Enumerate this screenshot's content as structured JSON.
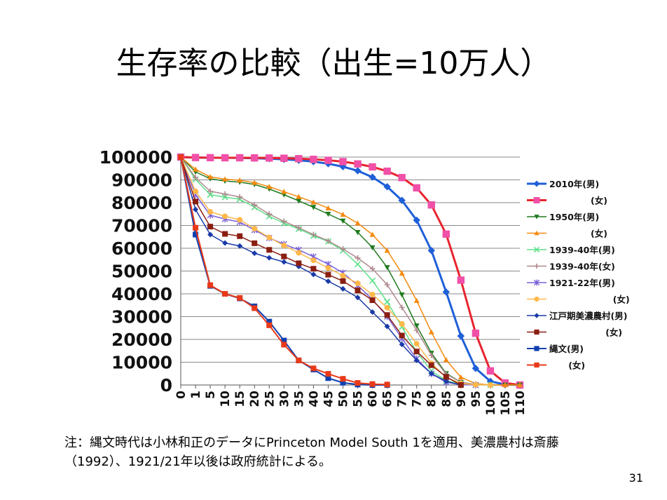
{
  "slide": {
    "title": "生存率の比較（出生=10万人）",
    "note_line1": "注：縄文時代は小林和正のデータにPrinceton Model South 1を適用、美濃農村は斎藤",
    "note_line2": "（1992）、1921/21年以後は政府統計による。",
    "page_number": "31"
  },
  "chart_data": {
    "type": "line",
    "title": "",
    "xlabel": "",
    "ylabel": "",
    "xlim": [
      0,
      110
    ],
    "ylim": [
      0,
      100000
    ],
    "x_ticks": [
      "0",
      "1",
      "5",
      "10",
      "15",
      "20",
      "25",
      "30",
      "35",
      "40",
      "45",
      "50",
      "55",
      "60",
      "65",
      "70",
      "75",
      "80",
      "85",
      "90",
      "95",
      "100",
      "105",
      "110"
    ],
    "y_ticks": [
      "100000",
      "90000",
      "80000",
      "70000",
      "60000",
      "50000",
      "40000",
      "30000",
      "20000",
      "10000",
      "0"
    ],
    "grid": "horizontal",
    "legend_position": "right",
    "series": [
      {
        "name": "2010年(男)",
        "color": "#1f5fd8",
        "marker": "diamond",
        "x": [
          0,
          1,
          5,
          10,
          15,
          20,
          25,
          30,
          35,
          40,
          45,
          50,
          55,
          60,
          65,
          70,
          75,
          80,
          85,
          90,
          95,
          100,
          105,
          110
        ],
        "values": [
          100000,
          99800,
          99700,
          99700,
          99600,
          99500,
          99300,
          99000,
          98600,
          98000,
          97100,
          95800,
          94000,
          91200,
          87000,
          81000,
          72300,
          59000,
          40800,
          21500,
          7300,
          1600,
          200,
          0
        ]
      },
      {
        "name": "(女)",
        "color": "#e8242e",
        "marker": "square",
        "marker_color": "#f050a8",
        "x": [
          0,
          1,
          5,
          10,
          15,
          20,
          25,
          30,
          35,
          40,
          45,
          50,
          55,
          60,
          65,
          70,
          75,
          80,
          85,
          90,
          95,
          100,
          105,
          110
        ],
        "values": [
          100000,
          99800,
          99750,
          99700,
          99700,
          99650,
          99600,
          99500,
          99300,
          99000,
          98600,
          98000,
          97000,
          95700,
          93800,
          91000,
          86500,
          79000,
          66200,
          46000,
          22700,
          6200,
          900,
          0
        ]
      },
      {
        "name": "1950年(男)",
        "color": "#1e7a1e",
        "marker": "triangle-down",
        "x": [
          0,
          1,
          5,
          10,
          15,
          20,
          25,
          30,
          35,
          40,
          45,
          50,
          55,
          60,
          65,
          70,
          75,
          80,
          85,
          90,
          95,
          100,
          105,
          110
        ],
        "values": [
          100000,
          93500,
          90500,
          89500,
          89000,
          88000,
          86000,
          83500,
          80800,
          78000,
          75000,
          72000,
          67000,
          60300,
          51600,
          39600,
          26000,
          14000,
          5100,
          1200,
          200,
          0,
          0,
          0
        ]
      },
      {
        "name": "(女)",
        "color": "#f58a0e",
        "marker": "triangle",
        "x": [
          0,
          1,
          5,
          10,
          15,
          20,
          25,
          30,
          35,
          40,
          45,
          50,
          55,
          60,
          65,
          70,
          75,
          80,
          85,
          90,
          95,
          100,
          105,
          110
        ],
        "values": [
          100000,
          94600,
          91300,
          90300,
          89800,
          88800,
          87000,
          84800,
          82600,
          80200,
          77600,
          74800,
          71000,
          66000,
          59000,
          49000,
          37000,
          23200,
          11000,
          3400,
          600,
          0,
          0,
          0
        ]
      },
      {
        "name": "1939-40年(男)",
        "color": "#5ee08a",
        "marker": "x",
        "x": [
          0,
          1,
          5,
          10,
          15,
          20,
          25,
          30,
          35,
          40,
          45,
          50,
          55,
          60,
          65,
          70,
          75,
          80,
          85,
          90,
          95,
          100
        ],
        "values": [
          100000,
          90200,
          83500,
          82400,
          81500,
          78000,
          74000,
          71000,
          68500,
          65500,
          63000,
          59000,
          53000,
          45800,
          36500,
          25500,
          14500,
          6200,
          1900,
          400,
          0,
          0
        ]
      },
      {
        "name": "1939-40年(女)",
        "color": "#b08a8e",
        "marker": "plus",
        "x": [
          0,
          1,
          5,
          10,
          15,
          20,
          25,
          30,
          35,
          40,
          45,
          50,
          55,
          60,
          65,
          70,
          75,
          80,
          85,
          90,
          95,
          100
        ],
        "values": [
          100000,
          91000,
          85000,
          83800,
          82500,
          79000,
          75000,
          71800,
          69000,
          66000,
          63200,
          59700,
          55700,
          51000,
          44000,
          34000,
          24000,
          13000,
          4800,
          1200,
          200,
          0
        ]
      },
      {
        "name": "1921-22年(男)",
        "color": "#7a60d8",
        "marker": "star",
        "x": [
          0,
          1,
          5,
          10,
          15,
          20,
          25,
          30,
          35,
          40,
          45,
          50,
          55,
          60,
          65,
          70,
          75,
          80,
          85,
          90,
          95
        ],
        "values": [
          100000,
          83500,
          74500,
          72800,
          71500,
          68000,
          64500,
          61800,
          59300,
          56300,
          53000,
          49200,
          43700,
          37500,
          30000,
          20400,
          11500,
          5000,
          1200,
          200,
          0
        ]
      },
      {
        "name": "(女)",
        "color": "#ffb84a",
        "marker": "circle",
        "x": [
          0,
          1,
          5,
          10,
          15,
          20,
          25,
          30,
          35,
          40,
          45,
          50,
          55,
          60,
          65,
          70,
          75,
          80,
          85,
          90,
          95,
          100
        ],
        "values": [
          100000,
          85000,
          76000,
          74000,
          72500,
          68600,
          64700,
          61200,
          58000,
          54700,
          51300,
          48000,
          44600,
          39700,
          33900,
          26800,
          18100,
          9500,
          3300,
          700,
          100,
          0
        ]
      },
      {
        "name": "江戸期美濃農村(男)",
        "color": "#1a3aa8",
        "marker": "diamond",
        "x": [
          0,
          1,
          5,
          10,
          15,
          20,
          25,
          30,
          35,
          40,
          45,
          50,
          55,
          60,
          65,
          70,
          75,
          80,
          85,
          90
        ],
        "values": [
          100000,
          77000,
          66000,
          62300,
          61000,
          57800,
          55800,
          54000,
          52000,
          48500,
          45500,
          42200,
          38400,
          32000,
          25700,
          17800,
          10800,
          5000,
          1600,
          0
        ]
      },
      {
        "name": "(女)",
        "color": "#8a1e12",
        "marker": "square",
        "x": [
          0,
          1,
          5,
          10,
          15,
          20,
          25,
          30,
          35,
          40,
          45,
          50,
          55,
          60,
          65,
          70,
          75,
          80,
          85,
          90
        ],
        "values": [
          100000,
          80500,
          69500,
          66300,
          65300,
          62200,
          59300,
          56400,
          53400,
          51000,
          48400,
          45600,
          41500,
          37200,
          30700,
          21700,
          14700,
          8700,
          3600,
          0
        ]
      },
      {
        "name": "縄文(男)",
        "color": "#1040b0",
        "marker": "square",
        "x": [
          0,
          1,
          5,
          10,
          15,
          20,
          25,
          30,
          35,
          40,
          45,
          50,
          55,
          60,
          65
        ],
        "values": [
          100000,
          66000,
          43500,
          40000,
          38000,
          34500,
          27800,
          19500,
          10800,
          6800,
          3000,
          1000,
          200,
          0,
          0
        ]
      },
      {
        "name": "(女)",
        "color": "#e83a1a",
        "marker": "square",
        "x": [
          0,
          1,
          5,
          10,
          15,
          20,
          25,
          30,
          35,
          40,
          45,
          50,
          55,
          60,
          65
        ],
        "values": [
          100000,
          69000,
          43800,
          40000,
          38200,
          33700,
          26200,
          17700,
          10800,
          7300,
          4900,
          2700,
          900,
          400,
          200
        ]
      }
    ]
  }
}
